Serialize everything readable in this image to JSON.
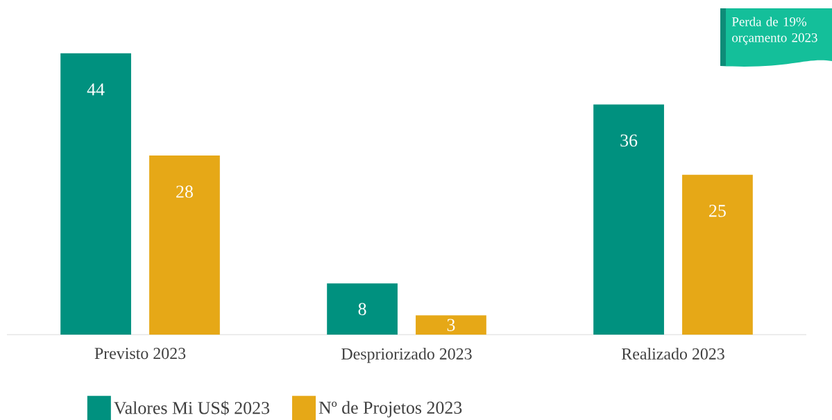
{
  "chart_data": {
    "type": "bar",
    "categories": [
      "Previsto 2023",
      "Despriorizado 2023",
      "Realizado 2023"
    ],
    "series": [
      {
        "name": "Valores Mi US$ 2023",
        "color": "#00917f",
        "values": [
          44,
          8,
          36
        ]
      },
      {
        "name": "Nº de Projetos 2023",
        "color": "#e6a817",
        "values": [
          28,
          3,
          25
        ]
      }
    ],
    "data_labels": true,
    "legend": "bottom",
    "annotations": [
      "Perda de 19% orçamento 2023"
    ]
  }
}
